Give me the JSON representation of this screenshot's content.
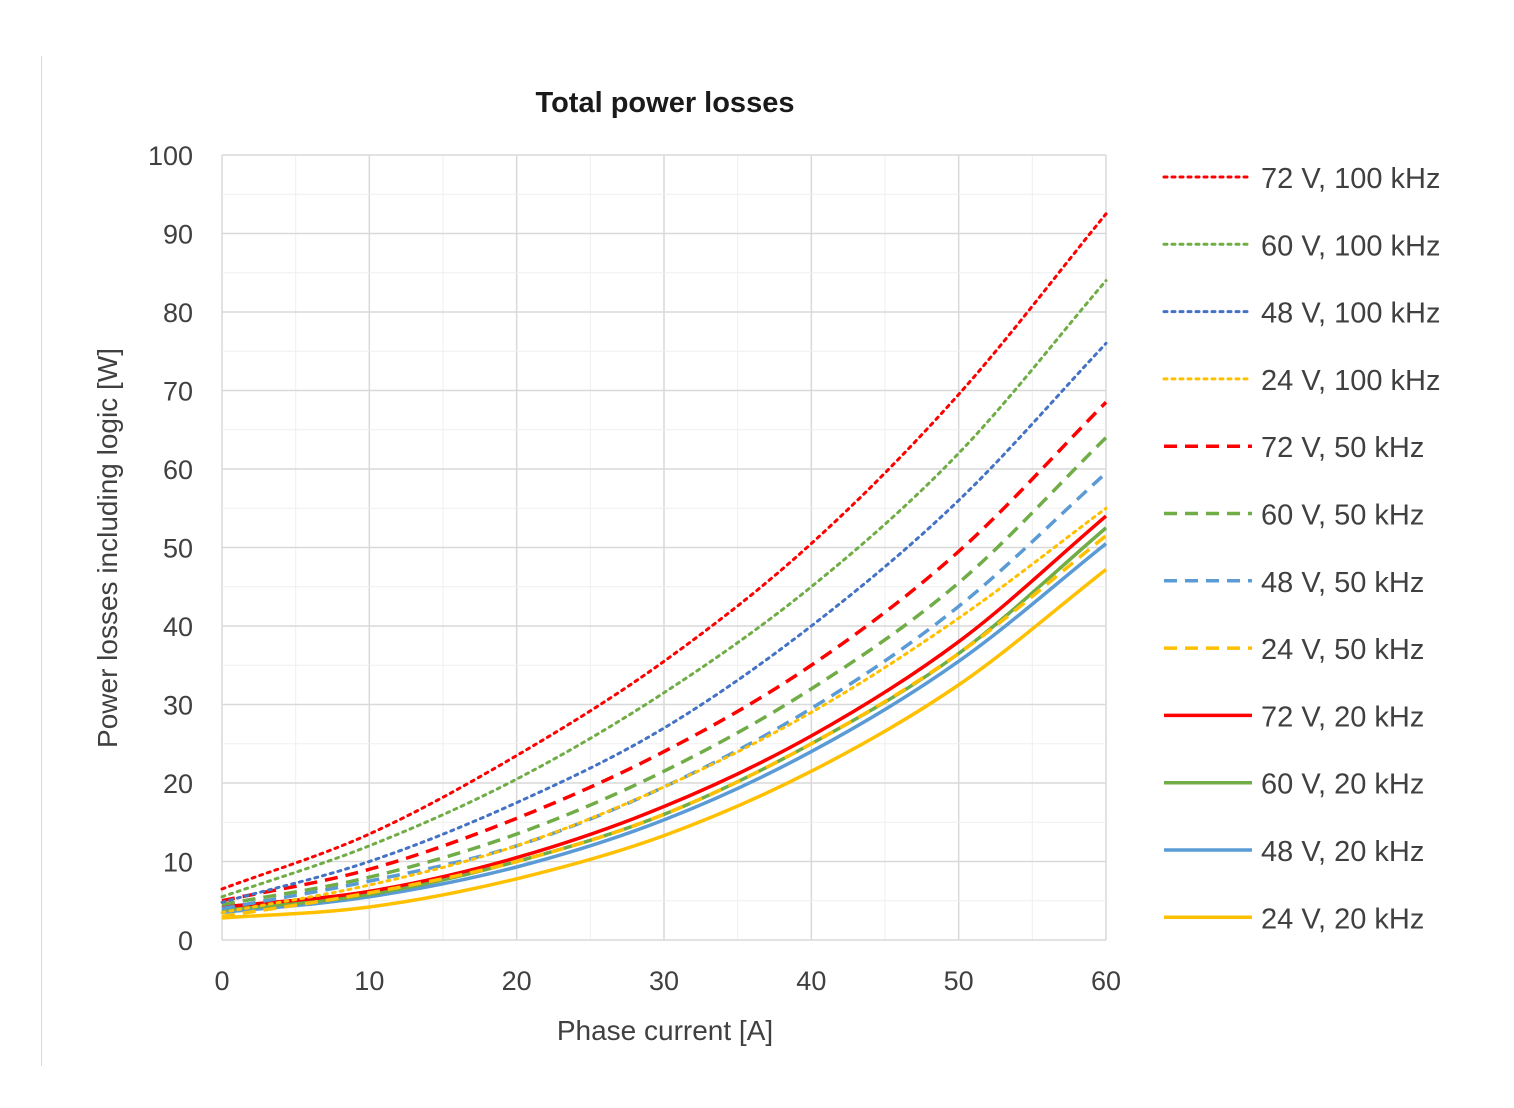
{
  "chart_data": {
    "type": "line",
    "title": "Total power losses",
    "xlabel": "Phase current [A]",
    "ylabel": "Power losses including logic [W]",
    "xlim": [
      0,
      60
    ],
    "ylim": [
      0,
      100
    ],
    "x_ticks": [
      "0",
      "10",
      "20",
      "30",
      "40",
      "50",
      "60"
    ],
    "y_ticks": [
      "0",
      "10",
      "20",
      "30",
      "40",
      "50",
      "60",
      "70",
      "80",
      "90",
      "100"
    ],
    "grid": true,
    "minor_grid": true,
    "legend_position": "right",
    "x": [
      0,
      10,
      20,
      30,
      40,
      50,
      60
    ],
    "series": [
      {
        "name": "72 V, 100 kHz",
        "color": "#ff0000",
        "dash": "dotted",
        "values": [
          6.5,
          13.5,
          23.5,
          35.5,
          50.5,
          69.5,
          92.5
        ]
      },
      {
        "name": "60 V, 100 kHz",
        "color": "#70ad47",
        "dash": "dotted",
        "values": [
          5.5,
          12,
          20.5,
          31.5,
          45,
          62,
          84
        ]
      },
      {
        "name": "48 V, 100 kHz",
        "color": "#4472c4",
        "dash": "dotted",
        "values": [
          4.8,
          10,
          17.5,
          27,
          40,
          56,
          76
        ]
      },
      {
        "name": "24 V, 100 kHz",
        "color": "#ffc000",
        "dash": "dotted",
        "values": [
          3.5,
          7,
          12,
          19.5,
          29,
          41,
          55
        ]
      },
      {
        "name": "72 V, 50 kHz",
        "color": "#ff0000",
        "dash": "dashed",
        "values": [
          5,
          9,
          15.5,
          24,
          35,
          49.5,
          68.5
        ]
      },
      {
        "name": "60 V, 50 kHz",
        "color": "#70ad47",
        "dash": "dashed",
        "values": [
          4.5,
          8,
          13.5,
          21.5,
          32,
          45.5,
          64
        ]
      },
      {
        "name": "48 V, 50 kHz",
        "color": "#5b9bd5",
        "dash": "dashed",
        "values": [
          4,
          7.5,
          12,
          19.5,
          29.5,
          42.5,
          59.5
        ]
      },
      {
        "name": "24 V, 50 kHz",
        "color": "#ffc000",
        "dash": "dashed",
        "values": [
          3,
          6,
          10,
          16,
          25,
          36.5,
          51.5
        ]
      },
      {
        "name": "72 V, 20 kHz",
        "color": "#ff0000",
        "dash": "solid",
        "values": [
          4.2,
          6.2,
          10.5,
          17,
          26,
          38,
          54
        ]
      },
      {
        "name": "60 V, 20 kHz",
        "color": "#70ad47",
        "dash": "solid",
        "values": [
          3.8,
          5.8,
          10,
          16,
          25,
          36.5,
          52.5
        ]
      },
      {
        "name": "48 V, 20 kHz",
        "color": "#5b9bd5",
        "dash": "solid",
        "values": [
          3.5,
          5.5,
          9.3,
          15.3,
          24,
          35.5,
          50.5
        ]
      },
      {
        "name": "24 V, 20 kHz",
        "color": "#ffc000",
        "dash": "solid",
        "values": [
          2.8,
          4.2,
          7.8,
          13.3,
          21.5,
          32.5,
          47.2
        ]
      }
    ]
  }
}
